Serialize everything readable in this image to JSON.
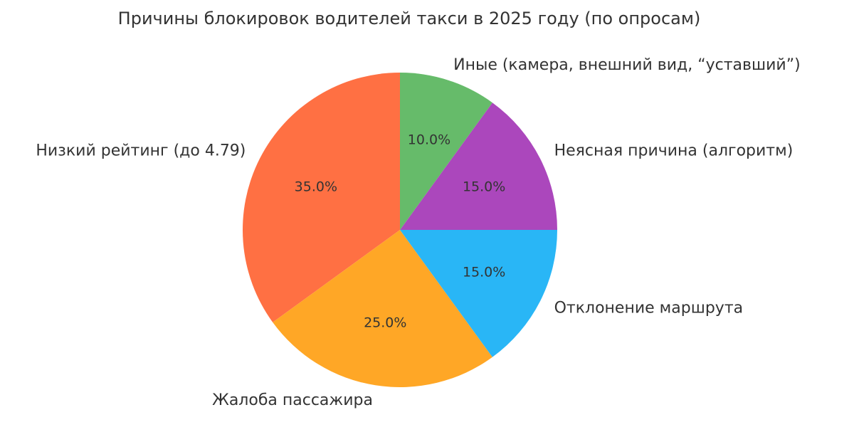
{
  "chart_data": {
    "type": "pie",
    "title": "Причины блокировок водителей такси в 2025 году (по опросам)",
    "categories": [
      "Низкий рейтинг (до 4.79)",
      "Жалоба пассажира",
      "Отклонение маршрута",
      "Неясная причина (алгоритм)",
      "Иные (камера, внешний вид, “уставший”)"
    ],
    "values": [
      35,
      25,
      15,
      15,
      10
    ],
    "value_labels": [
      "35.0%",
      "25.0%",
      "15.0%",
      "15.0%",
      "10.0%"
    ],
    "colors": [
      "#ff7043",
      "#ffa726",
      "#29b6f6",
      "#ab47bc",
      "#66bb6a"
    ]
  }
}
